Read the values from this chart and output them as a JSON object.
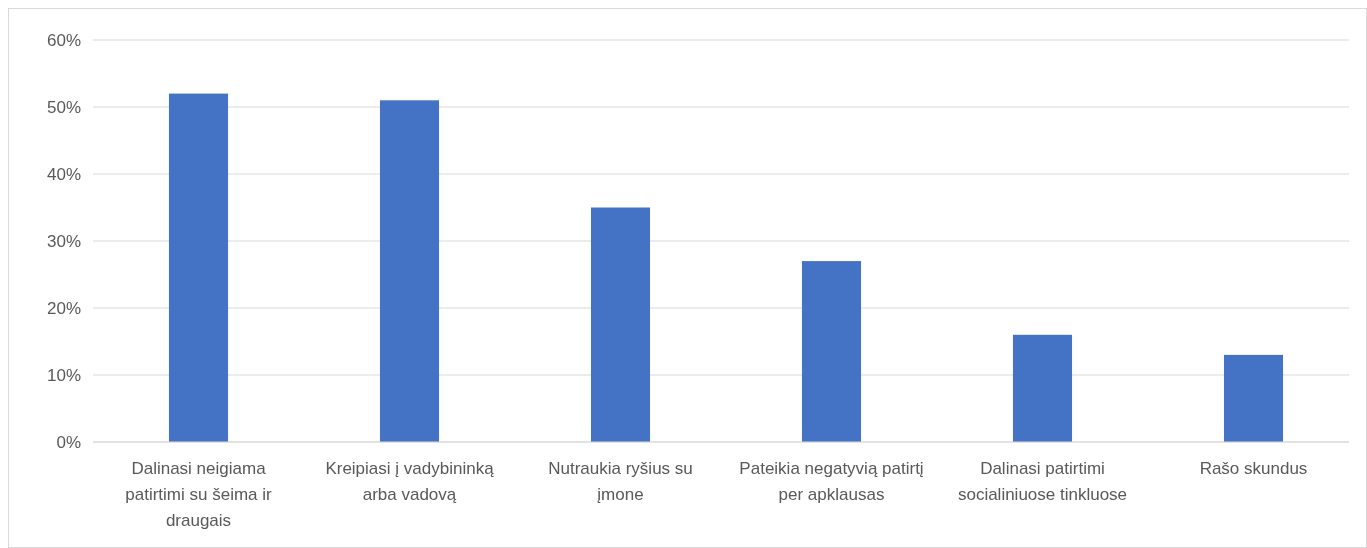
{
  "chart_data": {
    "type": "bar",
    "categories": [
      "Dalinasi neigiama patirtimi su šeima ir draugais",
      "Kreipiasi į vadybininką arba vadovą",
      "Nutraukia ryšius su įmone",
      "Pateikia negatyvią patirtį per apklausas",
      "Dalinasi patirtimi socialiniuose tinkluose",
      "Rašo skundus"
    ],
    "values": [
      52,
      51,
      35,
      27,
      16,
      13
    ],
    "color": "#4472c4",
    "ylim": [
      0,
      60
    ],
    "yticks": [
      {
        "value": 0,
        "label": "0%"
      },
      {
        "value": 10,
        "label": "10%"
      },
      {
        "value": 20,
        "label": "20%"
      },
      {
        "value": 30,
        "label": "30%"
      },
      {
        "value": 40,
        "label": "40%"
      },
      {
        "value": 50,
        "label": "50%"
      },
      {
        "value": 60,
        "label": "60%"
      }
    ],
    "grid": "y"
  }
}
